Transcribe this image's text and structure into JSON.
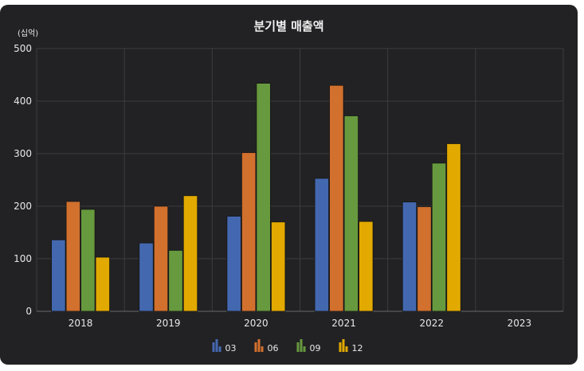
{
  "chart_data": {
    "type": "bar",
    "title": "분기별 매출액",
    "unit_label": "(십억)",
    "categories": [
      "2018",
      "2019",
      "2020",
      "2021",
      "2022",
      "2023"
    ],
    "series": [
      {
        "name": "03",
        "color": "#4468b0",
        "values": [
          136,
          130,
          181,
          253,
          208,
          null
        ]
      },
      {
        "name": "06",
        "color": "#d2702e",
        "values": [
          209,
          200,
          302,
          430,
          199,
          null
        ]
      },
      {
        "name": "09",
        "color": "#67993e",
        "values": [
          194,
          116,
          434,
          372,
          282,
          null
        ]
      },
      {
        "name": "12",
        "color": "#e2a900",
        "values": [
          103,
          220,
          170,
          171,
          319,
          null
        ]
      }
    ],
    "ylim": [
      0,
      500
    ],
    "yticks": [
      0,
      100,
      200,
      300,
      400,
      500
    ],
    "grid": true,
    "legend_position": "bottom"
  }
}
